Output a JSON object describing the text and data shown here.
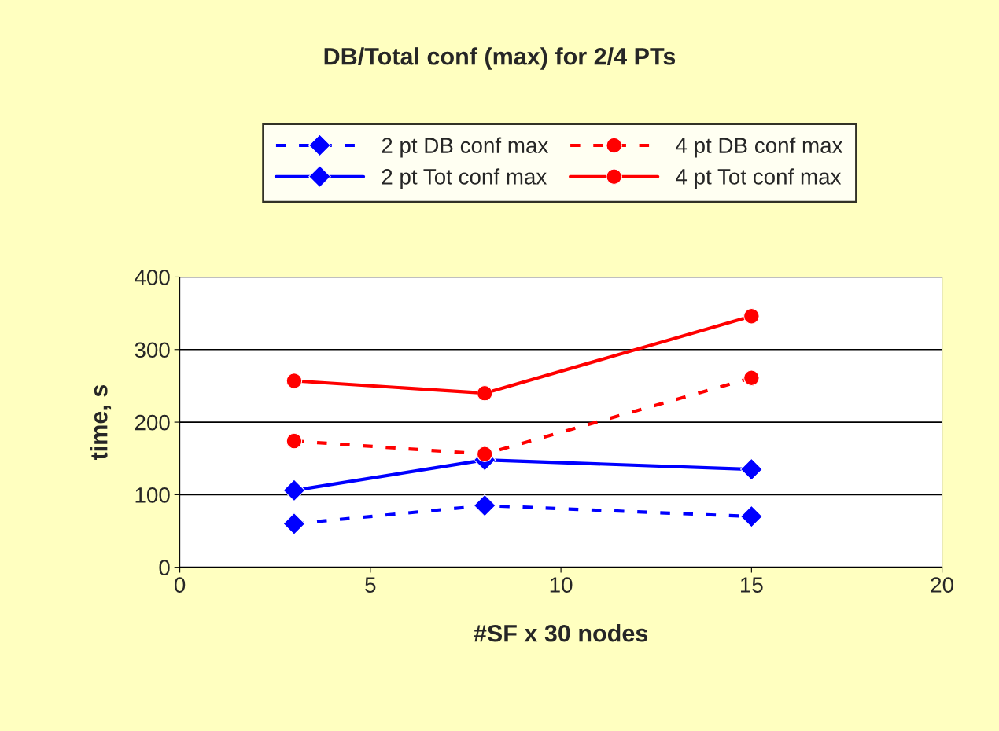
{
  "chart_data": {
    "type": "line",
    "title": "DB/Total conf (max) for 2/4 PTs",
    "xlabel": "#SF x 30 nodes",
    "ylabel": "time, s",
    "x": [
      3,
      8,
      15
    ],
    "series": [
      {
        "name": "2 pt DB conf max",
        "color": "#0000ff",
        "values": [
          60,
          85,
          70
        ],
        "line_style": "dashed",
        "marker": "diamond"
      },
      {
        "name": "2 pt Tot conf max",
        "color": "#0000ff",
        "values": [
          106,
          148,
          135
        ],
        "line_style": "solid",
        "marker": "diamond"
      },
      {
        "name": "4 pt DB conf max",
        "color": "#ff0000",
        "values": [
          174,
          156,
          261
        ],
        "line_style": "dashed",
        "marker": "circle"
      },
      {
        "name": "4 pt Tot conf max",
        "color": "#ff0000",
        "values": [
          257,
          240,
          346
        ],
        "line_style": "solid",
        "marker": "circle"
      }
    ],
    "xlim": [
      0,
      20
    ],
    "xticks": [
      0,
      5,
      10,
      15,
      20
    ],
    "ylim": [
      0,
      400
    ],
    "yticks": [
      0,
      100,
      200,
      300,
      400
    ],
    "grid": "y",
    "legend": "top"
  }
}
